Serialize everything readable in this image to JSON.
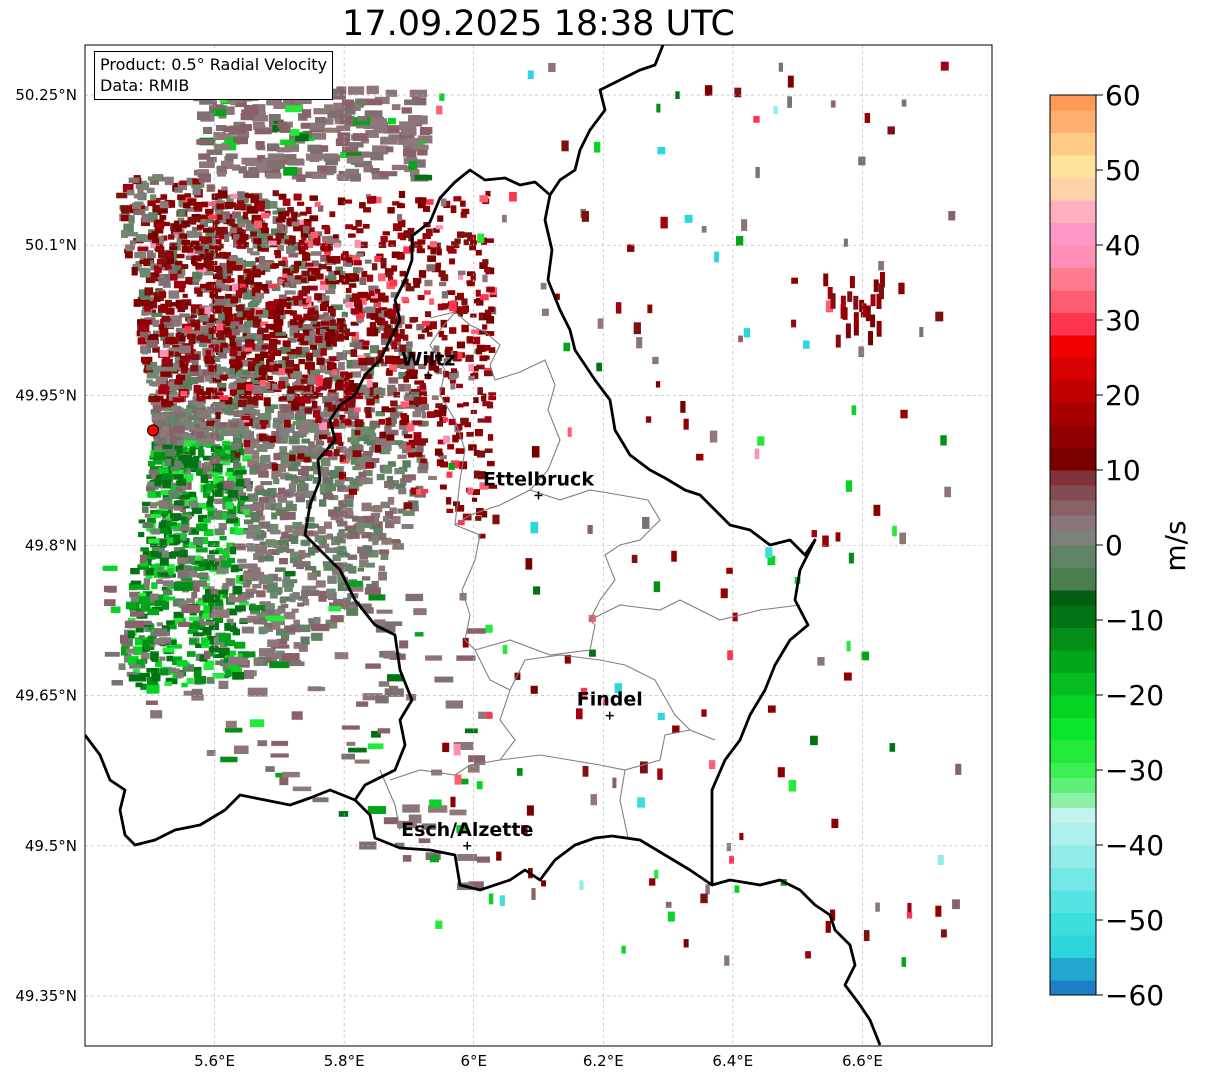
{
  "title": "17.09.2025 18:38 UTC",
  "info_box": {
    "product": "Product: 0.5° Radial Velocity",
    "data": "Data: RMIB"
  },
  "map": {
    "lon_range": [
      5.4,
      6.8
    ],
    "lat_range": [
      49.3,
      50.3
    ],
    "lon_ticks": [
      {
        "value": 5.6,
        "label": "5.6°E"
      },
      {
        "value": 5.8,
        "label": "5.8°E"
      },
      {
        "value": 6.0,
        "label": "6°E"
      },
      {
        "value": 6.2,
        "label": "6.2°E"
      },
      {
        "value": 6.4,
        "label": "6.4°E"
      },
      {
        "value": 6.6,
        "label": "6.6°E"
      }
    ],
    "lat_ticks": [
      {
        "value": 50.25,
        "label": "50.25°N"
      },
      {
        "value": 50.1,
        "label": "50.1°N"
      },
      {
        "value": 49.95,
        "label": "49.95°N"
      },
      {
        "value": 49.8,
        "label": "49.8°N"
      },
      {
        "value": 49.65,
        "label": "49.65°N"
      },
      {
        "value": 49.5,
        "label": "49.5°N"
      },
      {
        "value": 49.35,
        "label": "49.35°N"
      }
    ],
    "cities": [
      {
        "name": "Wiltz",
        "lon": 5.93,
        "lat": 49.97
      },
      {
        "name": "Ettelbruck",
        "lon": 6.1,
        "lat": 49.85
      },
      {
        "name": "Findel",
        "lon": 6.21,
        "lat": 49.63
      },
      {
        "name": "Esch/Alzette",
        "lon": 5.99,
        "lat": 49.5
      }
    ],
    "radar_site": {
      "lon": 5.505,
      "lat": 49.915,
      "color": "#ff0000"
    }
  },
  "colorbar": {
    "label": "m/s",
    "min": -60,
    "max": 60,
    "ticks": [
      {
        "value": 60,
        "label": "60"
      },
      {
        "value": 50,
        "label": "50"
      },
      {
        "value": 40,
        "label": "40"
      },
      {
        "value": 30,
        "label": "30"
      },
      {
        "value": 20,
        "label": "20"
      },
      {
        "value": 10,
        "label": "10"
      },
      {
        "value": 0,
        "label": "0"
      },
      {
        "value": -10,
        "label": "−10"
      },
      {
        "value": -20,
        "label": "−20"
      },
      {
        "value": -30,
        "label": "−30"
      },
      {
        "value": -40,
        "label": "−40"
      },
      {
        "value": -50,
        "label": "−50"
      },
      {
        "value": -60,
        "label": "−60"
      }
    ],
    "stops": [
      {
        "from": -60,
        "to": -58,
        "color": "#1e7fc6"
      },
      {
        "from": -58,
        "to": -55,
        "color": "#23a7cf"
      },
      {
        "from": -55,
        "to": -52,
        "color": "#2dd6dc"
      },
      {
        "from": -52,
        "to": -49,
        "color": "#3ddfde"
      },
      {
        "from": -49,
        "to": -46,
        "color": "#56e3e2"
      },
      {
        "from": -46,
        "to": -43,
        "color": "#74e8e6"
      },
      {
        "from": -43,
        "to": -40,
        "color": "#92ecea"
      },
      {
        "from": -40,
        "to": -37,
        "color": "#aef0ed"
      },
      {
        "from": -37,
        "to": -35,
        "color": "#c2f3ef"
      },
      {
        "from": -35,
        "to": -33,
        "color": "#8ef0a8"
      },
      {
        "from": -33,
        "to": -31,
        "color": "#5ff07a"
      },
      {
        "from": -31,
        "to": -29,
        "color": "#3cf054"
      },
      {
        "from": -29,
        "to": -26,
        "color": "#22e93a"
      },
      {
        "from": -26,
        "to": -23,
        "color": "#0ae62a"
      },
      {
        "from": -23,
        "to": -20,
        "color": "#06d424"
      },
      {
        "from": -20,
        "to": -17,
        "color": "#04bd1f"
      },
      {
        "from": -17,
        "to": -14,
        "color": "#03a61b"
      },
      {
        "from": -14,
        "to": -11,
        "color": "#038f17"
      },
      {
        "from": -11,
        "to": -8,
        "color": "#027313"
      },
      {
        "from": -8,
        "to": -6,
        "color": "#025e12"
      },
      {
        "from": -6,
        "to": -3,
        "color": "#4c7f4e"
      },
      {
        "from": -3,
        "to": 0,
        "color": "#628466"
      },
      {
        "from": 0,
        "to": 2,
        "color": "#7e807a"
      },
      {
        "from": 2,
        "to": 4,
        "color": "#8a7579"
      },
      {
        "from": 4,
        "to": 6,
        "color": "#886268"
      },
      {
        "from": 6,
        "to": 8,
        "color": "#844c52"
      },
      {
        "from": 8,
        "to": 10,
        "color": "#7f3238"
      },
      {
        "from": 10,
        "to": 13,
        "color": "#7a0000"
      },
      {
        "from": 13,
        "to": 16,
        "color": "#900000"
      },
      {
        "from": 16,
        "to": 19,
        "color": "#a80000"
      },
      {
        "from": 19,
        "to": 22,
        "color": "#c00000"
      },
      {
        "from": 22,
        "to": 25,
        "color": "#d80000"
      },
      {
        "from": 25,
        "to": 28,
        "color": "#f00000"
      },
      {
        "from": 28,
        "to": 31,
        "color": "#ff3550"
      },
      {
        "from": 31,
        "to": 34,
        "color": "#ff5e72"
      },
      {
        "from": 34,
        "to": 37,
        "color": "#ff7c90"
      },
      {
        "from": 37,
        "to": 40,
        "color": "#ff8fb4"
      },
      {
        "from": 40,
        "to": 43,
        "color": "#ff98c8"
      },
      {
        "from": 43,
        "to": 46,
        "color": "#ffb0c0"
      },
      {
        "from": 46,
        "to": 49,
        "color": "#ffd2a8"
      },
      {
        "from": 49,
        "to": 52,
        "color": "#ffe39b"
      },
      {
        "from": 52,
        "to": 55,
        "color": "#ffca86"
      },
      {
        "from": 55,
        "to": 58,
        "color": "#ffb070"
      },
      {
        "from": 58,
        "to": 60,
        "color": "#ff9a56"
      }
    ]
  }
}
